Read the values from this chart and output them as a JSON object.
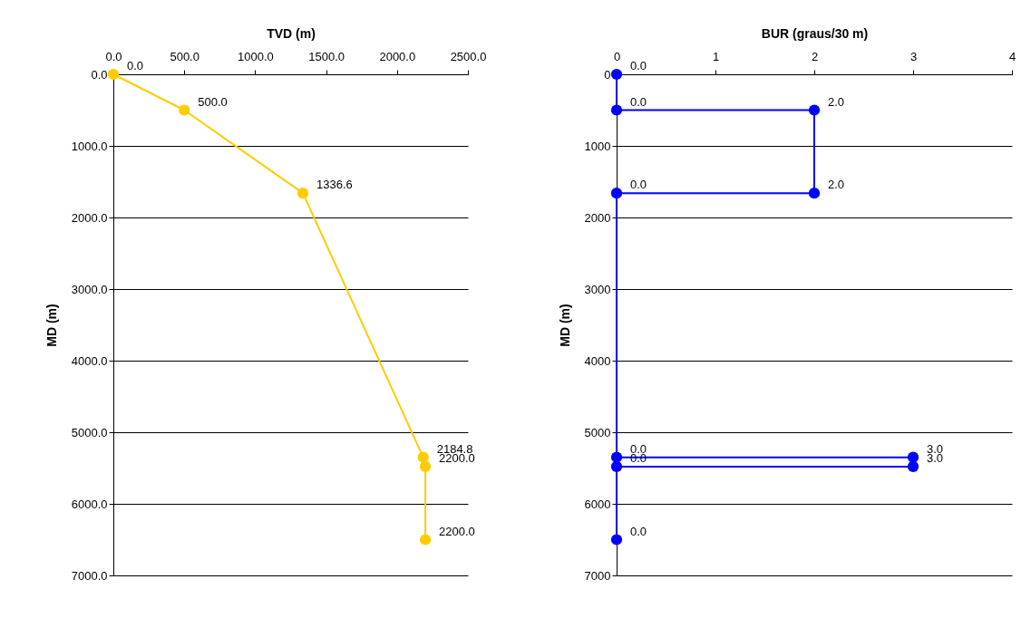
{
  "chart_data": [
    {
      "type": "line",
      "orientation": "horizontal",
      "xlabel": "TVD (m)",
      "ylabel": "MD (m)",
      "xlim": [
        0,
        2500
      ],
      "xticks": [
        {
          "value": 0,
          "label": "0.0"
        },
        {
          "value": 500,
          "label": "500.0"
        },
        {
          "value": 1000,
          "label": "1000.0"
        },
        {
          "value": 1500,
          "label": "1500.0"
        },
        {
          "value": 2000,
          "label": "2000.0"
        },
        {
          "value": 2500,
          "label": "2500.0"
        }
      ],
      "ylim": [
        7000,
        0
      ],
      "yticks": [
        {
          "value": 0,
          "label": "0.0"
        },
        {
          "value": 1000,
          "label": "1000.0"
        },
        {
          "value": 2000,
          "label": "2000.0"
        },
        {
          "value": 3000,
          "label": "3000.0"
        },
        {
          "value": 4000,
          "label": "4000.0"
        },
        {
          "value": 5000,
          "label": "5000.0"
        },
        {
          "value": 6000,
          "label": "6000.0"
        },
        {
          "value": 7000,
          "label": "7000.0"
        }
      ],
      "grid": "y",
      "marker": "circle",
      "series": [
        {
          "color": "#ffcc00",
          "x": [
            0,
            500,
            1660,
            5350,
            5480,
            6500
          ],
          "values": [
            0,
            500,
            1336.6,
            2184.8,
            2200,
            2200
          ],
          "value_labels": [
            "0.0",
            "500.0",
            "1336.6",
            "2184.8",
            "2200.0",
            "2200.0"
          ]
        }
      ]
    },
    {
      "type": "line",
      "orientation": "horizontal",
      "xlabel": "BUR (graus/30 m)",
      "ylabel": "MD (m)",
      "xlim": [
        0,
        4
      ],
      "xticks": [
        0,
        1,
        2,
        3,
        4
      ],
      "ylim": [
        7000,
        0
      ],
      "yticks": [
        0,
        1000,
        2000,
        3000,
        4000,
        5000,
        6000,
        7000
      ],
      "grid": "y",
      "marker": "circle",
      "series": [
        {
          "color": "#0000ff",
          "x": [
            0,
            500,
            500,
            1660,
            1660,
            5350,
            5350,
            5480,
            5480,
            6500
          ],
          "values": [
            0,
            0,
            2,
            2,
            0,
            0,
            3,
            3,
            0,
            0
          ],
          "value_labels": [
            "0.0",
            "0.0",
            "2.0",
            "2.0",
            "0.0",
            "0.0",
            "3.0",
            "3.0",
            "0.0",
            "0.0"
          ]
        }
      ]
    }
  ]
}
